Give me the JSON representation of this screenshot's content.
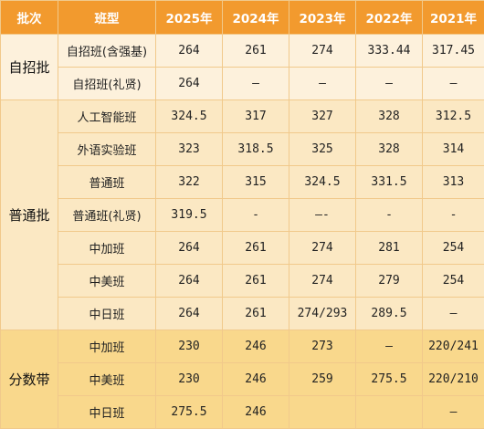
{
  "table": {
    "headers": [
      "批次",
      "班型",
      "2025年",
      "2024年",
      "2023年",
      "2022年",
      "2021年"
    ],
    "groups": [
      {
        "name": "自招批",
        "rows": [
          {
            "class": "自招班(含强基)",
            "values": [
              "264",
              "261",
              "274",
              "333.44",
              "317.45"
            ]
          },
          {
            "class": "自招班(礼贤)",
            "values": [
              "264",
              "–",
              "–",
              "–",
              "–"
            ]
          }
        ]
      },
      {
        "name": "普通批",
        "rows": [
          {
            "class": "人工智能班",
            "values": [
              "324.5",
              "317",
              "327",
              "328",
              "312.5"
            ]
          },
          {
            "class": "外语实验班",
            "values": [
              "323",
              "318.5",
              "325",
              "328",
              "314"
            ]
          },
          {
            "class": "普通班",
            "values": [
              "322",
              "315",
              "324.5",
              "331.5",
              "313"
            ]
          },
          {
            "class": "普通班(礼贤)",
            "values": [
              "319.5",
              "-",
              "—-",
              "-",
              "-"
            ]
          },
          {
            "class": "中加班",
            "values": [
              "264",
              "261",
              "274",
              "281",
              "254"
            ]
          },
          {
            "class": "中美班",
            "values": [
              "264",
              "261",
              "274",
              "279",
              "254"
            ]
          },
          {
            "class": "中日班",
            "values": [
              "264",
              "261",
              "274/293",
              "289.5",
              "—"
            ]
          }
        ]
      },
      {
        "name": "分数带",
        "rows": [
          {
            "class": "中加班",
            "values": [
              "230",
              "246",
              "273",
              "–",
              "220/241"
            ]
          },
          {
            "class": "中美班",
            "values": [
              "230",
              "246",
              "259",
              "275.5",
              "220/210"
            ]
          },
          {
            "class": "中日班",
            "values": [
              "275.5",
              "246",
              "",
              "",
              "–"
            ]
          }
        ]
      }
    ]
  }
}
